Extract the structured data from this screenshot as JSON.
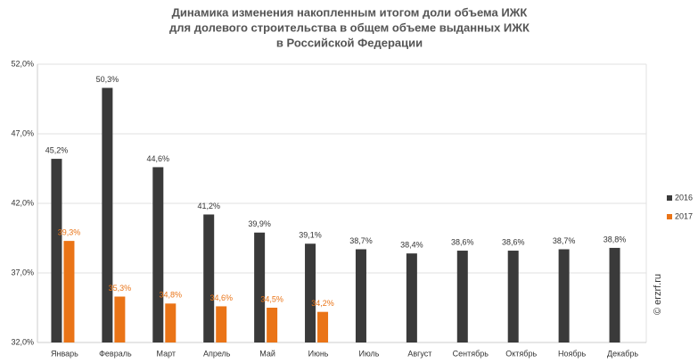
{
  "chart_data": {
    "type": "bar",
    "title": [
      "Динамика изменения накопленным итогом доли объема ИЖК",
      "для долевого строительства  в общем объеме выданных ИЖК",
      "в Российской  Федерации"
    ],
    "categories": [
      "Январь",
      "Февраль",
      "Март",
      "Апрель",
      "Май",
      "Июнь",
      "Июль",
      "Август",
      "Сентябрь",
      "Октябрь",
      "Ноябрь",
      "Декабрь"
    ],
    "series": [
      {
        "name": "2016",
        "color": "#3a3a3a",
        "values": [
          45.2,
          50.3,
          44.6,
          41.2,
          39.9,
          39.1,
          38.7,
          38.4,
          38.6,
          38.6,
          38.7,
          38.8
        ],
        "value_labels": [
          "45,2%",
          "50,3%",
          "44,6%",
          "41,2%",
          "39,9%",
          "39,1%",
          "38,7%",
          "38,4%",
          "38,6%",
          "38,6%",
          "38,7%",
          "38,8%"
        ]
      },
      {
        "name": "2017",
        "color": "#ea7417",
        "values": [
          39.3,
          35.3,
          34.8,
          34.6,
          34.5,
          34.2,
          null,
          null,
          null,
          null,
          null,
          null
        ],
        "value_labels": [
          "39,3%",
          "35,3%",
          "34,8%",
          "34,6%",
          "34,5%",
          "34,2%",
          null,
          null,
          null,
          null,
          null,
          null
        ]
      }
    ],
    "ylim": [
      32,
      52
    ],
    "yticks": [
      {
        "value": 32,
        "label": "32,0%"
      },
      {
        "value": 37,
        "label": "37,0%"
      },
      {
        "value": 42,
        "label": "42,0%"
      },
      {
        "value": 47,
        "label": "47,0%"
      },
      {
        "value": 52,
        "label": "52,0%"
      }
    ],
    "grid": true,
    "legend": "right",
    "watermark": "© erzrf.ru"
  }
}
